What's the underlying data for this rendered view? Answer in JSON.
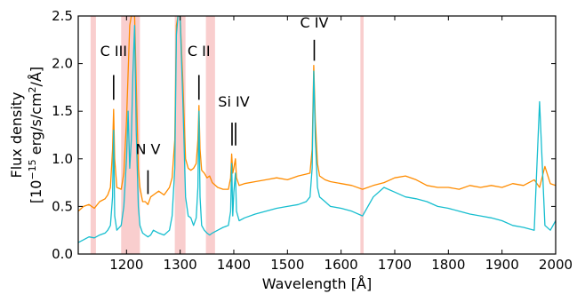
{
  "chart_data": {
    "type": "line",
    "xlabel": "Wavelength [Å]",
    "ylabel_line1": "Flux density",
    "ylabel_line2_pre": "[10",
    "ylabel_line2_exp": "−15",
    "ylabel_line2_mid": " erg/s/cm",
    "ylabel_line2_exp2": "2",
    "ylabel_line2_post": "/Å]",
    "xlim": [
      1110,
      2000
    ],
    "ylim": [
      0.0,
      2.5
    ],
    "xticks": [
      1200,
      1300,
      1400,
      1500,
      1600,
      1700,
      1800,
      1900,
      2000
    ],
    "yticks": [
      0.0,
      0.5,
      1.0,
      1.5,
      2.0,
      2.5
    ],
    "yticks_labels": [
      "0.0",
      "0.5",
      "1.0",
      "1.5",
      "2.0",
      "2.5"
    ],
    "grid": false,
    "colors": {
      "series_orange": "#ff8c00",
      "series_cyan": "#17becf",
      "mask_band": "#f4a6a6"
    },
    "masked_regions": [
      [
        1133,
        1143
      ],
      [
        1190,
        1225
      ],
      [
        1290,
        1310
      ],
      [
        1348,
        1365
      ],
      [
        1636,
        1642
      ]
    ],
    "annotations": [
      {
        "label": "C III",
        "x": 1176,
        "label_y": 2.08,
        "line_y": [
          1.62,
          1.88
        ],
        "double": false
      },
      {
        "label": "N V",
        "x": 1240,
        "label_y": 1.05,
        "line_y": [
          0.63,
          0.88
        ],
        "double": false
      },
      {
        "label": "C II",
        "x": 1335,
        "label_y": 2.08,
        "line_y": [
          1.62,
          1.88
        ],
        "double": false
      },
      {
        "label": "Si IV",
        "x": 1400,
        "label_y": 1.55,
        "line_y": [
          1.14,
          1.38
        ],
        "double": true
      },
      {
        "label": "C IV",
        "x": 1550,
        "label_y": 2.38,
        "line_y": [
          2.03,
          2.25
        ],
        "double": false
      }
    ],
    "series": [
      {
        "color": "#ff8c00",
        "x": [
          1110,
          1120,
          1130,
          1140,
          1150,
          1160,
          1165,
          1170,
          1174,
          1176,
          1178,
          1182,
          1190,
          1195,
          1200,
          1203,
          1206,
          1209,
          1212,
          1215,
          1218,
          1222,
          1225,
          1230,
          1235,
          1240,
          1245,
          1250,
          1260,
          1270,
          1280,
          1285,
          1290,
          1293,
          1296,
          1300,
          1305,
          1310,
          1315,
          1320,
          1325,
          1330,
          1333,
          1335,
          1337,
          1340,
          1345,
          1350,
          1355,
          1360,
          1370,
          1380,
          1390,
          1394,
          1396,
          1398,
          1400,
          1403,
          1405,
          1410,
          1420,
          1440,
          1460,
          1480,
          1500,
          1520,
          1535,
          1542,
          1546,
          1549,
          1552,
          1556,
          1560,
          1570,
          1580,
          1600,
          1620,
          1640,
          1660,
          1680,
          1700,
          1720,
          1740,
          1760,
          1780,
          1800,
          1820,
          1840,
          1860,
          1880,
          1900,
          1920,
          1940,
          1960,
          1970,
          1980,
          1990,
          2000
        ],
        "y": [
          0.45,
          0.5,
          0.52,
          0.48,
          0.55,
          0.58,
          0.62,
          0.7,
          1.1,
          1.52,
          1.0,
          0.7,
          0.68,
          0.85,
          1.4,
          1.9,
          2.4,
          2.5,
          2.5,
          2.5,
          1.8,
          0.9,
          0.7,
          0.55,
          0.55,
          0.52,
          0.6,
          0.62,
          0.66,
          0.62,
          0.7,
          0.8,
          1.2,
          2.4,
          2.5,
          2.5,
          1.8,
          1.0,
          0.9,
          0.88,
          0.9,
          0.95,
          1.2,
          1.56,
          1.1,
          0.88,
          0.85,
          0.8,
          0.82,
          0.75,
          0.7,
          0.68,
          0.68,
          0.8,
          1.05,
          0.85,
          0.9,
          1.0,
          0.8,
          0.72,
          0.74,
          0.76,
          0.78,
          0.8,
          0.78,
          0.82,
          0.84,
          0.85,
          1.1,
          1.98,
          1.4,
          0.95,
          0.82,
          0.78,
          0.76,
          0.74,
          0.72,
          0.68,
          0.72,
          0.75,
          0.8,
          0.82,
          0.78,
          0.72,
          0.7,
          0.7,
          0.68,
          0.72,
          0.7,
          0.72,
          0.7,
          0.74,
          0.72,
          0.78,
          0.7,
          0.92,
          0.74,
          0.72
        ]
      },
      {
        "color": "#17becf",
        "x": [
          1110,
          1120,
          1130,
          1140,
          1150,
          1160,
          1165,
          1170,
          1174,
          1176,
          1178,
          1182,
          1190,
          1195,
          1200,
          1203,
          1206,
          1209,
          1212,
          1215,
          1218,
          1222,
          1225,
          1230,
          1235,
          1240,
          1245,
          1250,
          1260,
          1270,
          1280,
          1285,
          1290,
          1293,
          1296,
          1300,
          1305,
          1310,
          1315,
          1320,
          1325,
          1330,
          1333,
          1335,
          1337,
          1340,
          1345,
          1350,
          1355,
          1360,
          1370,
          1380,
          1390,
          1394,
          1396,
          1398,
          1400,
          1403,
          1405,
          1410,
          1420,
          1440,
          1460,
          1480,
          1500,
          1520,
          1535,
          1542,
          1546,
          1549,
          1552,
          1556,
          1560,
          1570,
          1580,
          1600,
          1620,
          1640,
          1660,
          1680,
          1700,
          1720,
          1740,
          1760,
          1780,
          1800,
          1820,
          1840,
          1860,
          1880,
          1900,
          1920,
          1940,
          1960,
          1970,
          1980,
          1990,
          2000
        ],
        "y": [
          0.12,
          0.15,
          0.18,
          0.17,
          0.2,
          0.22,
          0.25,
          0.3,
          0.6,
          1.3,
          0.4,
          0.25,
          0.3,
          0.5,
          1.0,
          1.5,
          0.9,
          1.2,
          1.9,
          2.4,
          1.3,
          0.5,
          0.3,
          0.22,
          0.2,
          0.18,
          0.2,
          0.25,
          0.22,
          0.2,
          0.25,
          0.4,
          0.9,
          2.3,
          2.5,
          2.5,
          1.6,
          0.6,
          0.4,
          0.38,
          0.3,
          0.38,
          0.7,
          1.5,
          0.6,
          0.3,
          0.25,
          0.22,
          0.2,
          0.22,
          0.25,
          0.28,
          0.3,
          0.45,
          0.95,
          0.4,
          0.65,
          0.85,
          0.45,
          0.35,
          0.38,
          0.42,
          0.45,
          0.48,
          0.5,
          0.52,
          0.55,
          0.6,
          0.9,
          1.92,
          1.2,
          0.7,
          0.6,
          0.55,
          0.5,
          0.48,
          0.45,
          0.4,
          0.6,
          0.7,
          0.65,
          0.6,
          0.58,
          0.55,
          0.5,
          0.48,
          0.45,
          0.42,
          0.4,
          0.38,
          0.35,
          0.3,
          0.28,
          0.25,
          1.6,
          0.3,
          0.25,
          0.35
        ]
      }
    ]
  }
}
